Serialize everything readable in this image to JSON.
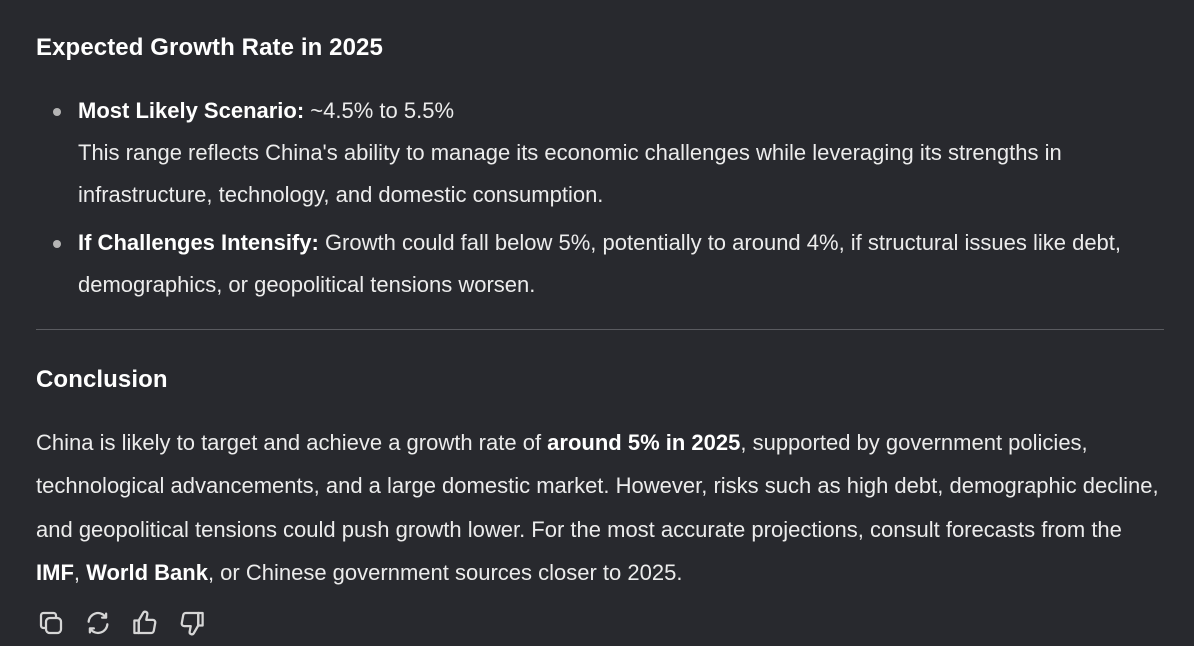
{
  "growth_section": {
    "heading": "Expected Growth Rate in 2025",
    "bullets": [
      {
        "label": "Most Likely Scenario:",
        "value": " ~4.5% to 5.5%",
        "detail": "This range reflects China's ability to manage its economic challenges while leveraging its strengths in infrastructure, technology, and domestic consumption."
      },
      {
        "label": "If Challenges Intensify:",
        "value": " Growth could fall below 5%, potentially to around 4%, if structural issues like debt, demographics, or geopolitical tensions worsen."
      }
    ]
  },
  "conclusion_section": {
    "heading": "Conclusion",
    "text_1": "China is likely to target and achieve a growth rate of ",
    "bold_1": "around 5% in 2025",
    "text_2": ", supported by government policies, technological advancements, and a large domestic market. However, risks such as high debt, demographic decline, and geopolitical tensions could push growth lower. For the most accurate projections, consult forecasts from the ",
    "bold_2": "IMF",
    "text_3": ", ",
    "bold_3": "World Bank",
    "text_4": ", or Chinese government sources closer to 2025."
  },
  "actions": [
    {
      "icon": "copy-icon"
    },
    {
      "icon": "regenerate-icon"
    },
    {
      "icon": "thumbs-up-icon"
    },
    {
      "icon": "thumbs-down-icon"
    }
  ],
  "colors": {
    "background": "#28292e",
    "text": "#ececec",
    "heading": "#ffffff",
    "divider": "#5a5b60",
    "bullet": "#b4b4b4"
  }
}
